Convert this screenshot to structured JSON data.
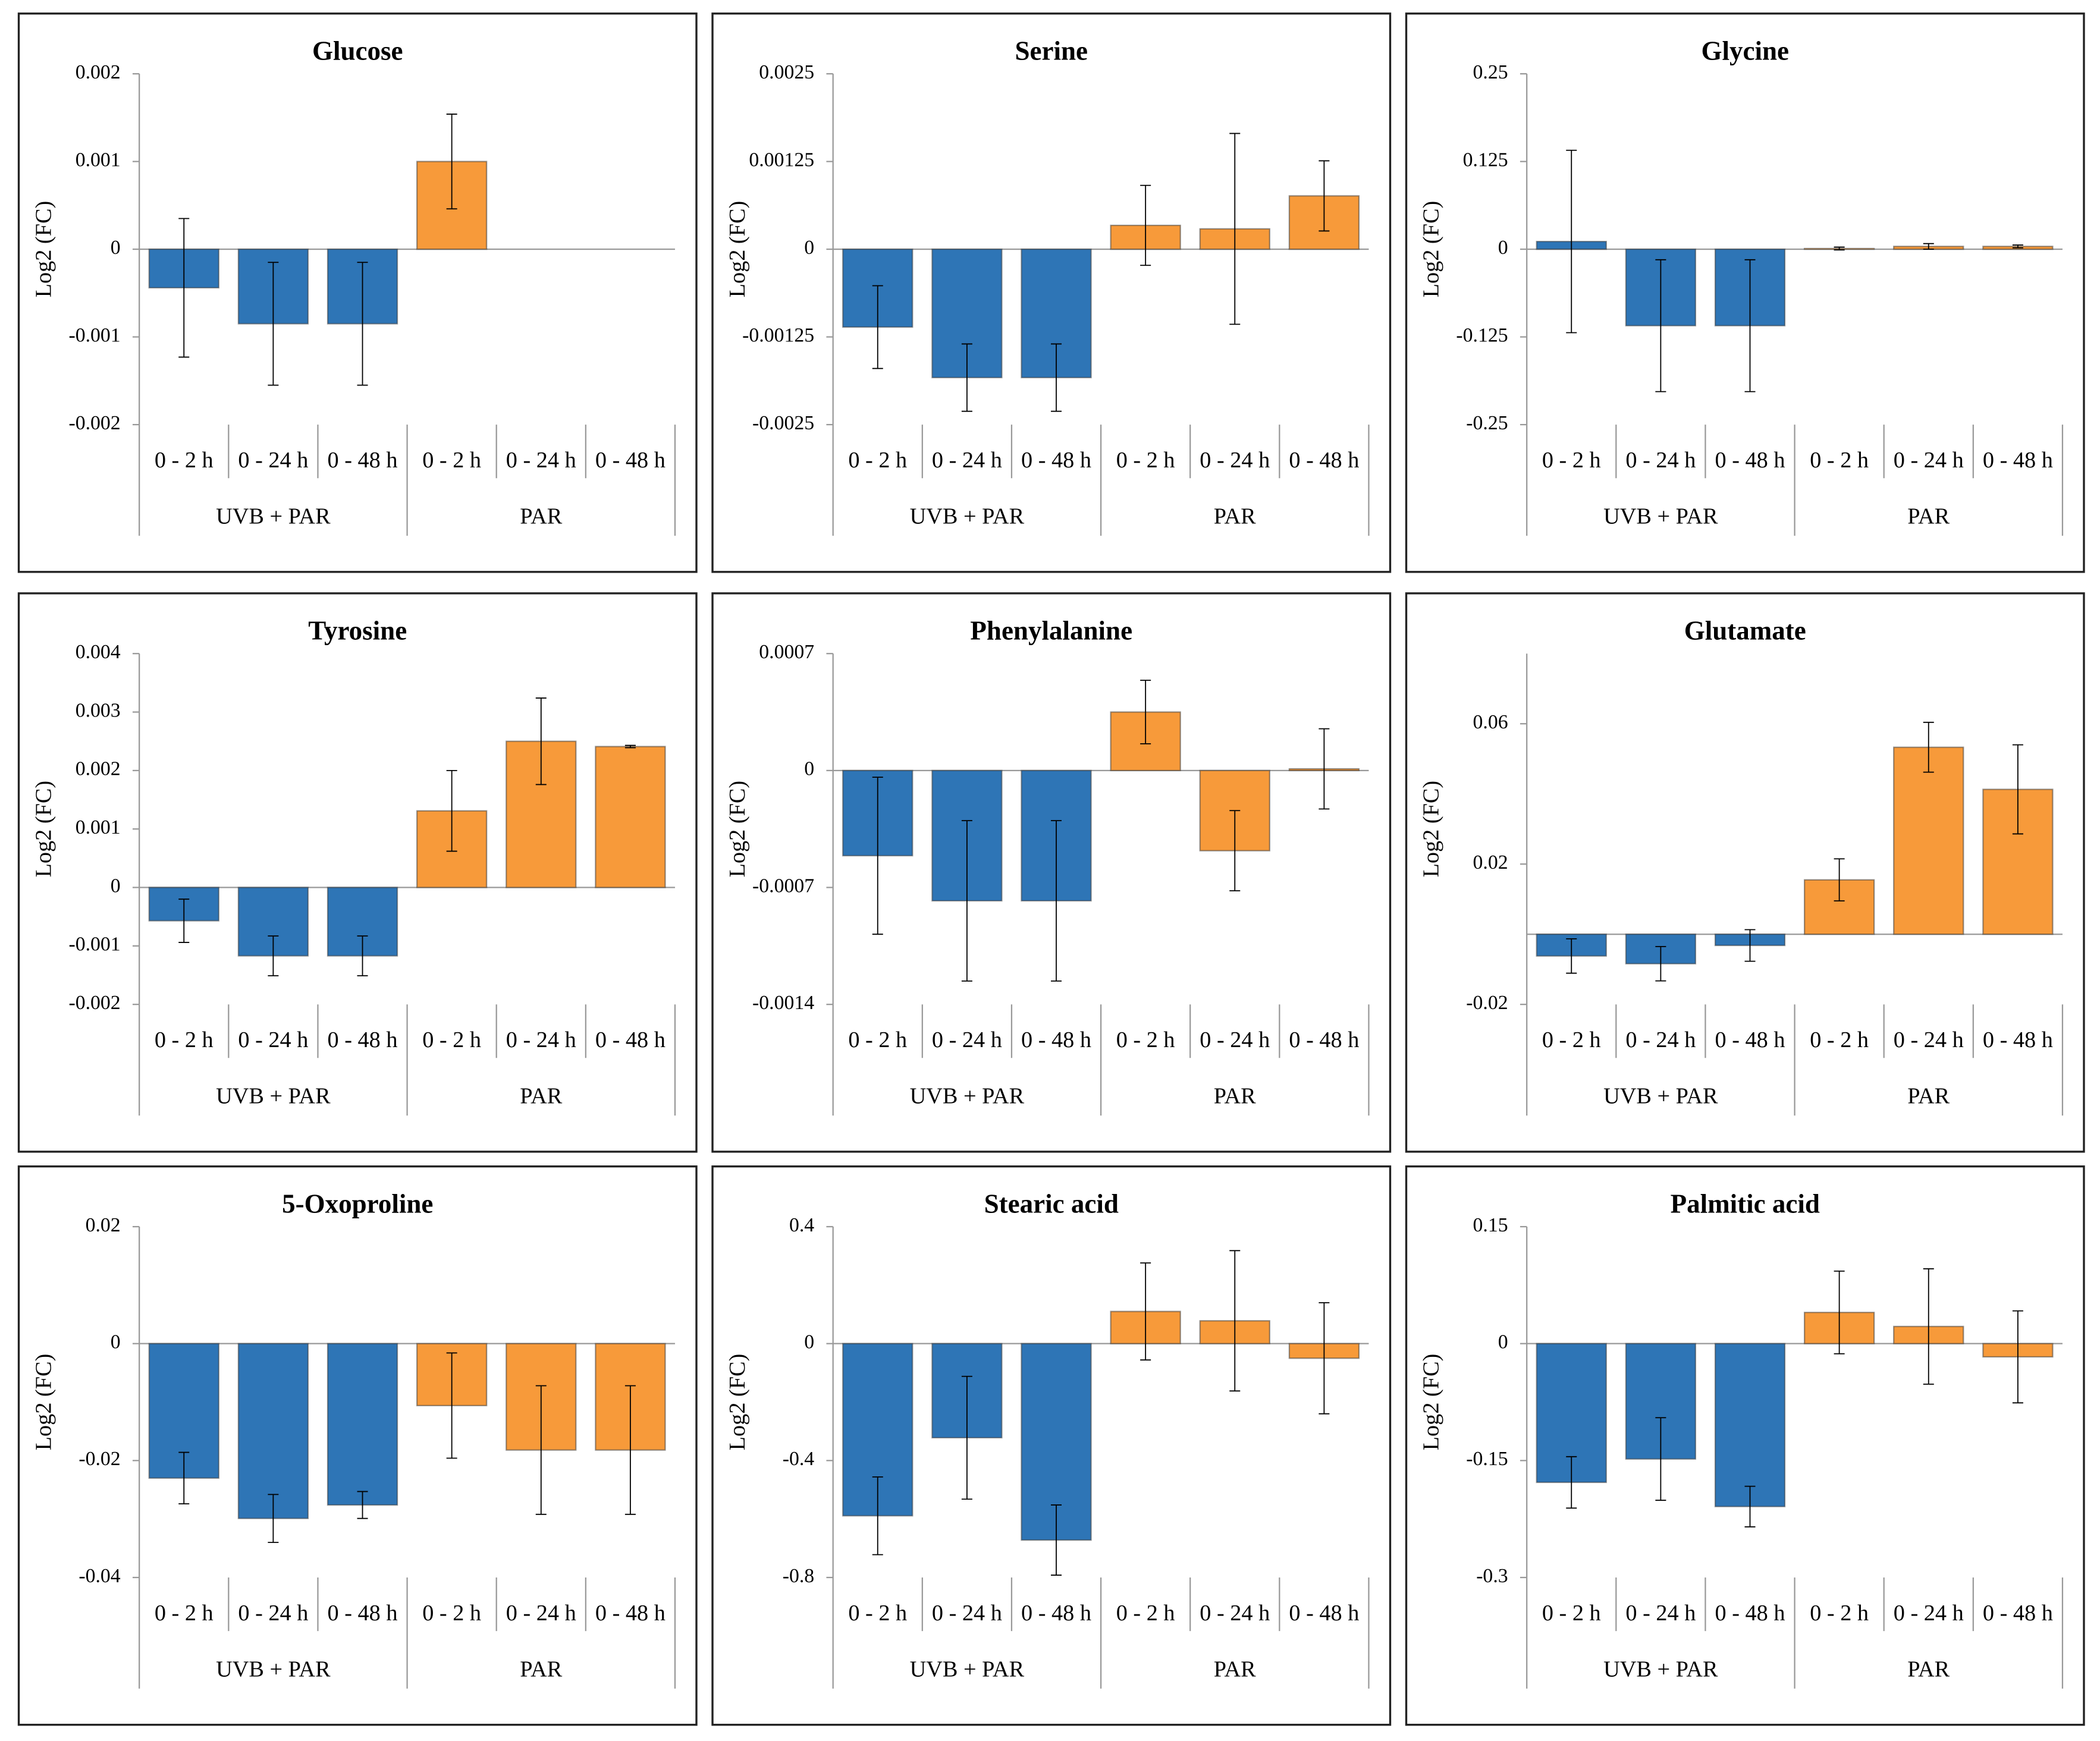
{
  "chart_data": [
    {
      "type": "bar",
      "title": "Glucose",
      "ylabel": "Log2 (FC)",
      "categories": [
        "0 - 2 h",
        "0 - 24 h",
        "0 - 48 h",
        "0 - 2 h",
        "0 - 24 h",
        "0 - 48 h"
      ],
      "series": [
        {
          "name": "UVB + PAR",
          "color": "#2e75b6",
          "values": [
            -0.00044,
            -0.00085,
            -0.00085,
            null,
            null,
            null
          ],
          "errors": [
            0.00079,
            0.0007,
            0.0007,
            null,
            null,
            null
          ]
        },
        {
          "name": "PAR",
          "color": "#f79a3a",
          "values": [
            null,
            null,
            null,
            0.001,
            null,
            null
          ],
          "errors": [
            null,
            null,
            null,
            0.00054,
            null,
            null
          ]
        }
      ],
      "ylim": [
        -0.002,
        0.002
      ],
      "yticks": [
        0.002,
        0.001,
        0,
        -0.001,
        -0.002
      ]
    },
    {
      "type": "bar",
      "title": "Serine",
      "ylabel": "Log2 (FC)",
      "categories": [
        "0 - 2 h",
        "0 - 24 h",
        "0 - 48 h",
        "0 - 2 h",
        "0 - 24 h",
        "0 - 48 h"
      ],
      "series": [
        {
          "name": "UVB + PAR",
          "color": "#2e75b6",
          "values": [
            -0.00111,
            -0.00183,
            -0.00183,
            null,
            null,
            null
          ],
          "errors": [
            0.00059,
            0.00048,
            0.00048,
            null,
            null,
            null
          ]
        },
        {
          "name": "PAR",
          "color": "#f79a3a",
          "values": [
            null,
            null,
            null,
            0.00034,
            0.00029,
            0.00076
          ],
          "errors": [
            null,
            null,
            null,
            0.00057,
            0.00136,
            0.0005
          ]
        }
      ],
      "ylim": [
        -0.0025,
        0.0025
      ],
      "yticks": [
        0.0025,
        0.00125,
        0,
        -0.00125,
        -0.0025
      ]
    },
    {
      "type": "bar",
      "title": "Glycine",
      "ylabel": "Log2 (FC)",
      "categories": [
        "0 - 2 h",
        "0 - 24 h",
        "0 - 48 h",
        "0 - 2 h",
        "0 - 24 h",
        "0 - 48 h"
      ],
      "series": [
        {
          "name": "UVB + PAR",
          "color": "#2e75b6",
          "values": [
            0.011,
            -0.109,
            -0.109,
            null,
            null,
            null
          ],
          "errors": [
            0.13,
            0.094,
            0.094,
            null,
            null,
            null
          ]
        },
        {
          "name": "PAR",
          "color": "#f79a3a",
          "values": [
            null,
            null,
            null,
            0.001,
            0.004,
            0.004
          ],
          "errors": [
            null,
            null,
            null,
            0.002,
            0.004,
            0.002
          ]
        }
      ],
      "ylim": [
        -0.25,
        0.25
      ],
      "yticks": [
        0.25,
        0.125,
        0,
        -0.125,
        -0.25
      ]
    },
    {
      "type": "bar",
      "title": "Tyrosine",
      "ylabel": "Log2 (FC)",
      "categories": [
        "0 - 2 h",
        "0 - 24 h",
        "0 - 48 h",
        "0 - 2 h",
        "0 - 24 h",
        "0 - 48 h"
      ],
      "series": [
        {
          "name": "UVB + PAR",
          "color": "#2e75b6",
          "values": [
            -0.00057,
            -0.00117,
            -0.00117,
            null,
            null,
            null
          ],
          "errors": [
            0.00037,
            0.00034,
            0.00034,
            null,
            null,
            null
          ]
        },
        {
          "name": "PAR",
          "color": "#f79a3a",
          "values": [
            null,
            null,
            null,
            0.00131,
            0.0025,
            0.00241
          ],
          "errors": [
            null,
            null,
            null,
            0.00069,
            0.00074,
            2e-05
          ]
        }
      ],
      "ylim": [
        -0.002,
        0.004
      ],
      "yticks": [
        0.004,
        0.003,
        0.002,
        0.001,
        0,
        -0.001,
        -0.002
      ]
    },
    {
      "type": "bar",
      "title": "Phenylalanine",
      "ylabel": "Log2 (FC)",
      "categories": [
        "0 - 2 h",
        "0 - 24 h",
        "0 - 48 h",
        "0 - 2 h",
        "0 - 24 h",
        "0 - 48 h"
      ],
      "series": [
        {
          "name": "UVB + PAR",
          "color": "#2e75b6",
          "values": [
            -0.00051,
            -0.00078,
            -0.00078,
            null,
            null,
            null
          ],
          "errors": [
            0.00047,
            0.00048,
            0.00048,
            null,
            null,
            null
          ]
        },
        {
          "name": "PAR",
          "color": "#f79a3a",
          "values": [
            null,
            null,
            null,
            0.00035,
            -0.00048,
            1e-05
          ],
          "errors": [
            null,
            null,
            null,
            0.00019,
            0.00024,
            0.00024
          ]
        }
      ],
      "ylim": [
        -0.0014,
        0.0007
      ],
      "yticks": [
        0.0007,
        0,
        -0.0007,
        -0.0014
      ]
    },
    {
      "type": "bar",
      "title": "Glutamate",
      "ylabel": "Log2 (FC)",
      "categories": [
        "0 - 2 h",
        "0 - 24 h",
        "0 - 48 h",
        "0 - 2 h",
        "0 - 24 h",
        "0 - 48 h"
      ],
      "series": [
        {
          "name": "UVB + PAR",
          "color": "#2e75b6",
          "values": [
            -0.0062,
            -0.0084,
            -0.0032,
            null,
            null,
            null
          ],
          "errors": [
            0.0049,
            0.0049,
            0.0045,
            null,
            null,
            null
          ]
        },
        {
          "name": "PAR",
          "color": "#f79a3a",
          "values": [
            null,
            null,
            null,
            0.0155,
            0.0533,
            0.0413
          ],
          "errors": [
            null,
            null,
            null,
            0.006,
            0.0071,
            0.0127
          ]
        }
      ],
      "ylim": [
        -0.02,
        0.08
      ],
      "yticks": [
        0.06,
        0.02,
        -0.02
      ]
    },
    {
      "type": "bar",
      "title": "5-Oxoproline",
      "ylabel": "Log2 (FC)",
      "categories": [
        "0 - 2 h",
        "0 - 24 h",
        "0 - 48 h",
        "0 - 2 h",
        "0 - 24 h",
        "0 - 48 h"
      ],
      "series": [
        {
          "name": "UVB + PAR",
          "color": "#2e75b6",
          "values": [
            -0.023,
            -0.0299,
            -0.0276,
            null,
            null,
            null
          ],
          "errors": [
            0.0044,
            0.0041,
            0.0023,
            null,
            null,
            null
          ]
        },
        {
          "name": "PAR",
          "color": "#f79a3a",
          "values": [
            null,
            null,
            null,
            -0.0106,
            -0.0182,
            -0.0182
          ],
          "errors": [
            null,
            null,
            null,
            0.009,
            0.011,
            0.011
          ]
        }
      ],
      "ylim": [
        -0.04,
        0.02
      ],
      "yticks": [
        0.02,
        0,
        -0.02,
        -0.04
      ]
    },
    {
      "type": "bar",
      "title": "Stearic acid",
      "ylabel": "Log2 (FC)",
      "categories": [
        "0 - 2 h",
        "0 - 24 h",
        "0 - 48 h",
        "0 - 2 h",
        "0 - 24 h",
        "0 - 48 h"
      ],
      "series": [
        {
          "name": "UVB + PAR",
          "color": "#2e75b6",
          "values": [
            -0.589,
            -0.322,
            -0.672,
            null,
            null,
            null
          ],
          "errors": [
            0.133,
            0.21,
            0.12,
            null,
            null,
            null
          ]
        },
        {
          "name": "PAR",
          "color": "#f79a3a",
          "values": [
            null,
            null,
            null,
            0.11,
            0.078,
            -0.05
          ],
          "errors": [
            null,
            null,
            null,
            0.166,
            0.24,
            0.19
          ]
        }
      ],
      "ylim": [
        -0.8,
        0.4
      ],
      "yticks": [
        0.4,
        0,
        -0.4,
        -0.8
      ]
    },
    {
      "type": "bar",
      "title": "Palmitic acid",
      "ylabel": "Log2 (FC)",
      "categories": [
        "0 - 2 h",
        "0 - 24 h",
        "0 - 48 h",
        "0 - 2 h",
        "0 - 24 h",
        "0 - 48 h"
      ],
      "series": [
        {
          "name": "UVB + PAR",
          "color": "#2e75b6",
          "values": [
            -0.178,
            -0.148,
            -0.209,
            null,
            null,
            null
          ],
          "errors": [
            0.033,
            0.053,
            0.026,
            null,
            null,
            null
          ]
        },
        {
          "name": "PAR",
          "color": "#f79a3a",
          "values": [
            null,
            null,
            null,
            0.04,
            0.022,
            -0.017
          ],
          "errors": [
            null,
            null,
            null,
            0.053,
            0.074,
            0.059
          ]
        }
      ],
      "ylim": [
        -0.3,
        0.15
      ],
      "yticks": [
        0.15,
        0,
        -0.15,
        -0.3
      ]
    }
  ]
}
